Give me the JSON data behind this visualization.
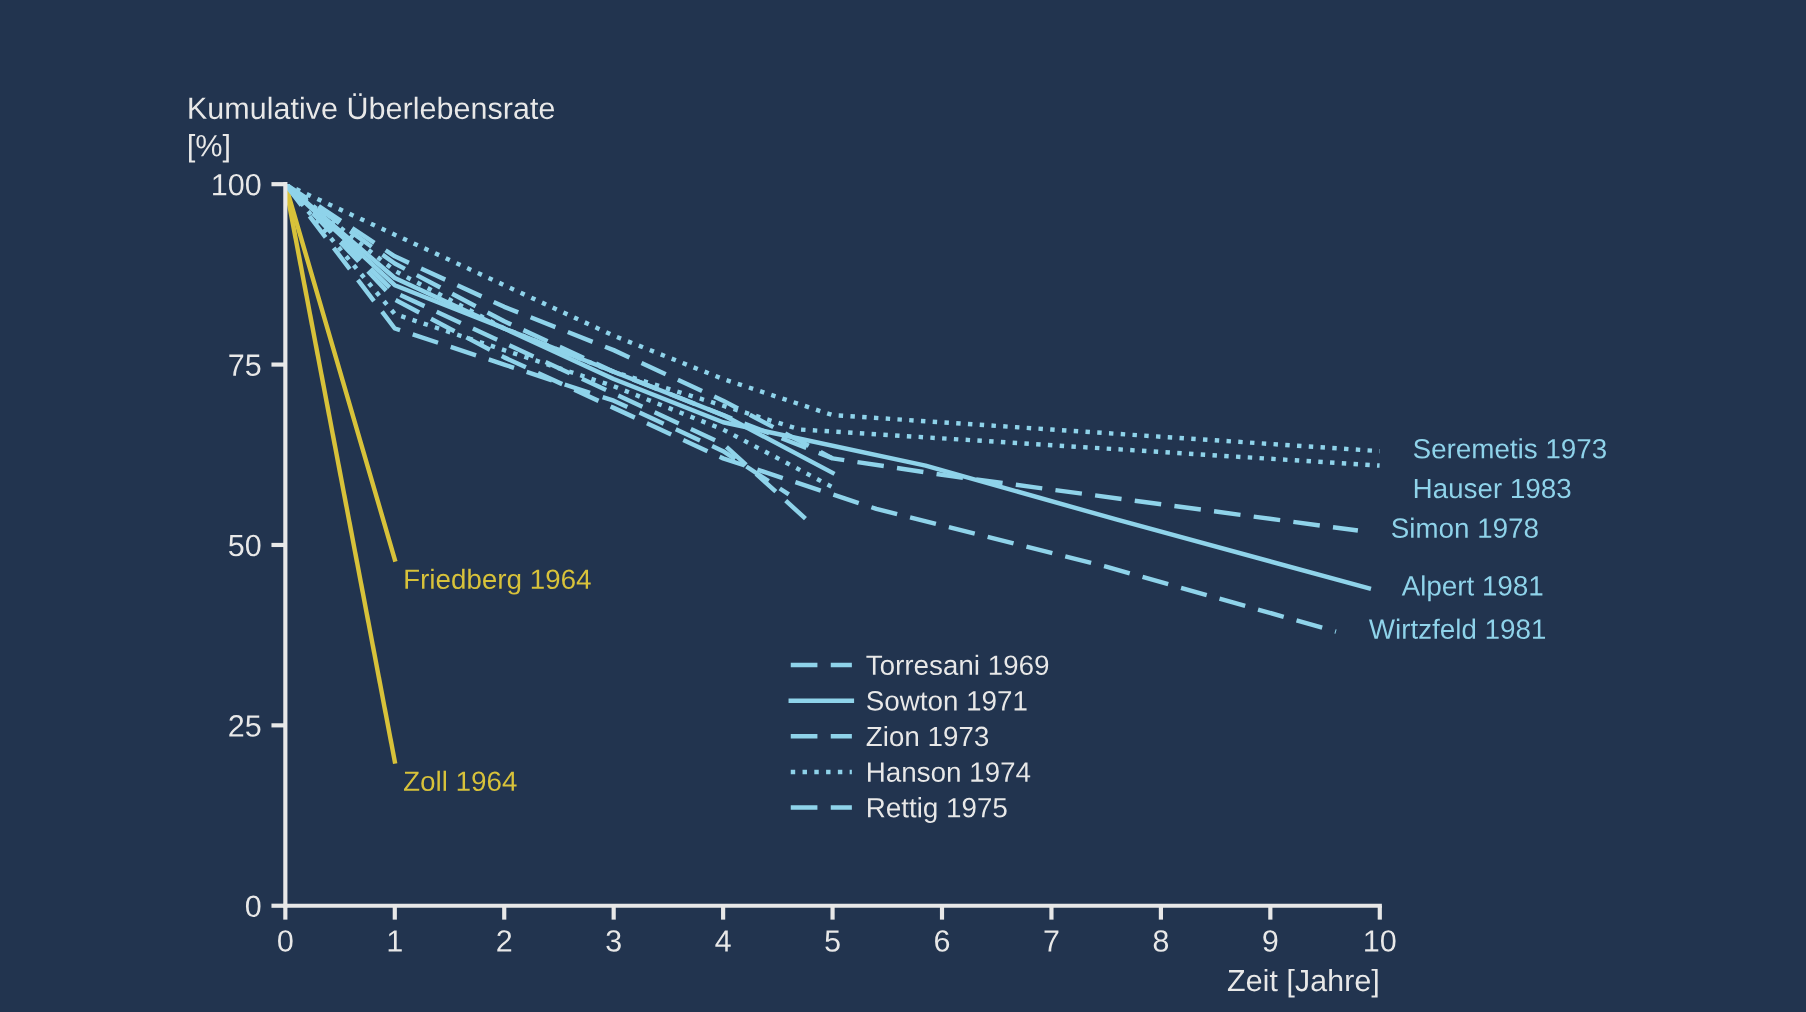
{
  "chart_data": {
    "type": "line",
    "xlabel": "Zeit [Jahre]",
    "ylabel": "Kumulative Überlebensrate\n[%]",
    "xlim": [
      0,
      10
    ],
    "ylim": [
      0,
      100
    ],
    "xticks": [
      0,
      1,
      2,
      3,
      4,
      5,
      6,
      7,
      8,
      9,
      10
    ],
    "yticks": [
      0,
      25,
      50,
      75,
      100
    ],
    "grid": false,
    "legend": "bottom",
    "marker": "none",
    "series": [
      {
        "name": "Friedberg 1964",
        "color": "#d8c23a",
        "line_style": "solid",
        "x": [
          0,
          1
        ],
        "values": [
          100,
          48
        ]
      },
      {
        "name": "Zoll 1964",
        "color": "#d8c23a",
        "line_style": "solid",
        "x": [
          0,
          1
        ],
        "values": [
          100,
          20
        ]
      },
      {
        "name": "Seremetis 1973",
        "color": "#8fd3ea",
        "line_style": "dotted",
        "x": [
          0,
          1,
          2,
          3,
          4,
          5,
          7,
          10
        ],
        "values": [
          100,
          93,
          86,
          79,
          73,
          68,
          66,
          63
        ]
      },
      {
        "name": "Hauser 1983",
        "color": "#8fd3ea",
        "line_style": "dotted",
        "x": [
          0,
          1,
          2,
          3,
          4.7,
          10
        ],
        "values": [
          100,
          88,
          80,
          74,
          66,
          61
        ]
      },
      {
        "name": "Simon 1978",
        "color": "#8fd3ea",
        "line_style": "dashed",
        "x": [
          0,
          1,
          2,
          3,
          4,
          5,
          6.1,
          9.8
        ],
        "values": [
          100,
          89,
          81,
          74,
          68,
          62,
          59.5,
          52
        ]
      },
      {
        "name": "Alpert 1981",
        "color": "#8fd3ea",
        "line_style": "solid",
        "x": [
          0,
          1,
          2,
          3,
          4,
          5.85,
          7.6,
          9.9
        ],
        "values": [
          100,
          87,
          80,
          73,
          67,
          61,
          53.5,
          44
        ]
      },
      {
        "name": "Wirtzfeld 1981",
        "color": "#8fd3ea",
        "line_style": "dashed",
        "x": [
          0,
          1,
          2,
          3,
          4,
          5.4,
          7.5,
          9.6
        ],
        "values": [
          100,
          84,
          76,
          69,
          62,
          55,
          47,
          38
        ]
      },
      {
        "name": "Torresani 1969",
        "color": "#8fd3ea",
        "line_style": "dashed",
        "x": [
          0,
          1,
          2,
          3,
          4,
          5
        ],
        "values": [
          100,
          90,
          83,
          77,
          70,
          62
        ]
      },
      {
        "name": "Sowton 1971",
        "color": "#8fd3ea",
        "line_style": "solid",
        "x": [
          0,
          1,
          2,
          3,
          4,
          5
        ],
        "values": [
          100,
          86,
          80,
          74,
          68,
          60
        ]
      },
      {
        "name": "Zion 1973",
        "color": "#8fd3ea",
        "line_style": "dashed",
        "x": [
          0,
          1,
          2,
          3,
          4,
          4.8
        ],
        "values": [
          100,
          85,
          78,
          71,
          64,
          53
        ]
      },
      {
        "name": "Hanson 1974",
        "color": "#8fd3ea",
        "line_style": "dotted",
        "x": [
          0,
          1,
          2,
          3,
          4,
          5
        ],
        "values": [
          100,
          82,
          77,
          72,
          66,
          58
        ]
      },
      {
        "name": "Rettig 1975",
        "color": "#8fd3ea",
        "line_style": "dashed",
        "x": [
          0,
          1,
          2,
          3,
          4,
          4.6
        ],
        "values": [
          100,
          80,
          75,
          70,
          63,
          57
        ]
      }
    ]
  }
}
